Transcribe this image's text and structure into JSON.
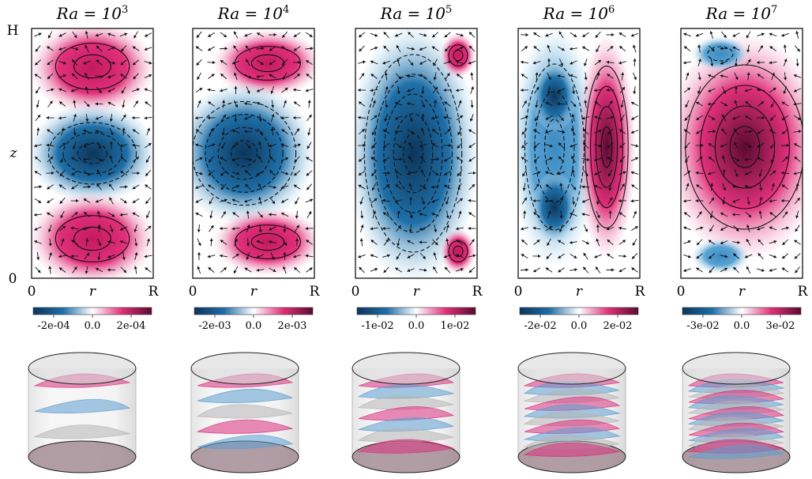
{
  "panels": [
    {
      "ra_base": "Ra = 10",
      "ra_exp": "3",
      "cb_labels": [
        "-2e-04",
        "0.0",
        "2e-04"
      ],
      "pattern": "three-cell"
    },
    {
      "ra_base": "Ra = 10",
      "ra_exp": "4",
      "cb_labels": [
        "-2e-03",
        "0.0",
        "2e-03"
      ],
      "pattern": "three-cell-tapered"
    },
    {
      "ra_base": "Ra = 10",
      "ra_exp": "5",
      "cb_labels": [
        "-1e-02",
        "0.0",
        "1e-02"
      ],
      "pattern": "single-blue"
    },
    {
      "ra_base": "Ra = 10",
      "ra_exp": "6",
      "cb_labels": [
        "-2e-02",
        "0.0",
        "2e-02"
      ],
      "pattern": "blue-red-split"
    },
    {
      "ra_base": "Ra = 10",
      "ra_exp": "7",
      "cb_labels": [
        "-3e-02",
        "0.0",
        "3e-02"
      ],
      "pattern": "single-red"
    }
  ],
  "axis": {
    "y_top": "H",
    "y_bottom": "0",
    "y_mid": "z",
    "x_left": "0",
    "x_mid": "r",
    "x_right": "R"
  },
  "colors": {
    "negative": "#1f6fa8",
    "negative_dark": "#0b3559",
    "positive": "#e0307a",
    "positive_dark": "#5a0a2e",
    "neutral": "#ffffff"
  }
}
